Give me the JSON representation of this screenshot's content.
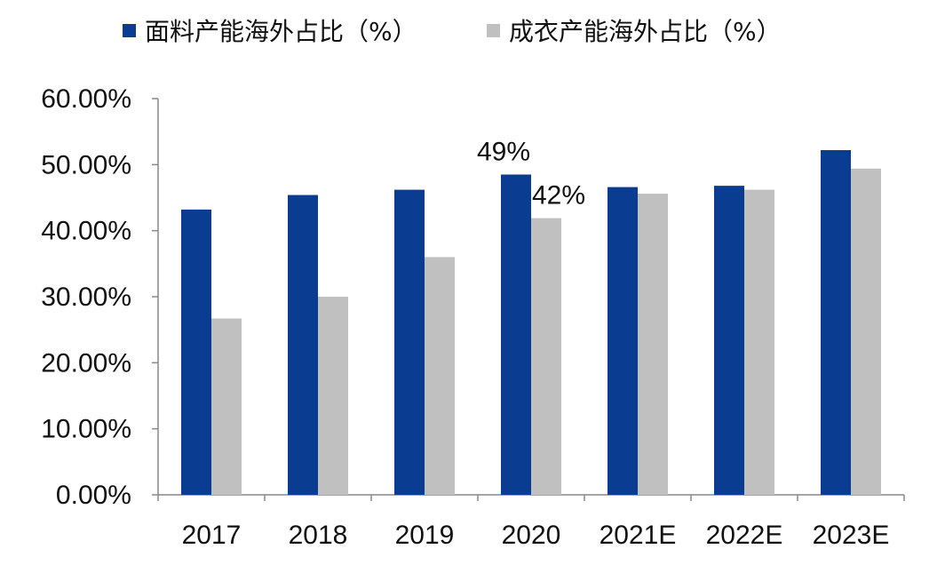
{
  "chart_data": {
    "type": "bar",
    "categories": [
      "2017",
      "2018",
      "2019",
      "2020",
      "2021E",
      "2022E",
      "2023E"
    ],
    "series": [
      {
        "name": "面料产能海外占比（%）",
        "color": "#0a3d91",
        "values": [
          43.2,
          45.4,
          46.2,
          48.5,
          46.6,
          46.8,
          52.2
        ]
      },
      {
        "name": "成衣产能海外占比（%）",
        "color": "#c0c0c0",
        "values": [
          26.7,
          30.0,
          36.0,
          41.9,
          45.6,
          46.2,
          49.4
        ]
      }
    ],
    "ylim": [
      0,
      60
    ],
    "yticks": [
      "0.00%",
      "10.00%",
      "20.00%",
      "30.00%",
      "40.00%",
      "50.00%",
      "60.00%"
    ],
    "annotations": [
      {
        "text": "49%",
        "category": "2020",
        "series": 0
      },
      {
        "text": "42%",
        "category": "2020",
        "series": 1
      }
    ],
    "legend": "top",
    "grid": false
  }
}
